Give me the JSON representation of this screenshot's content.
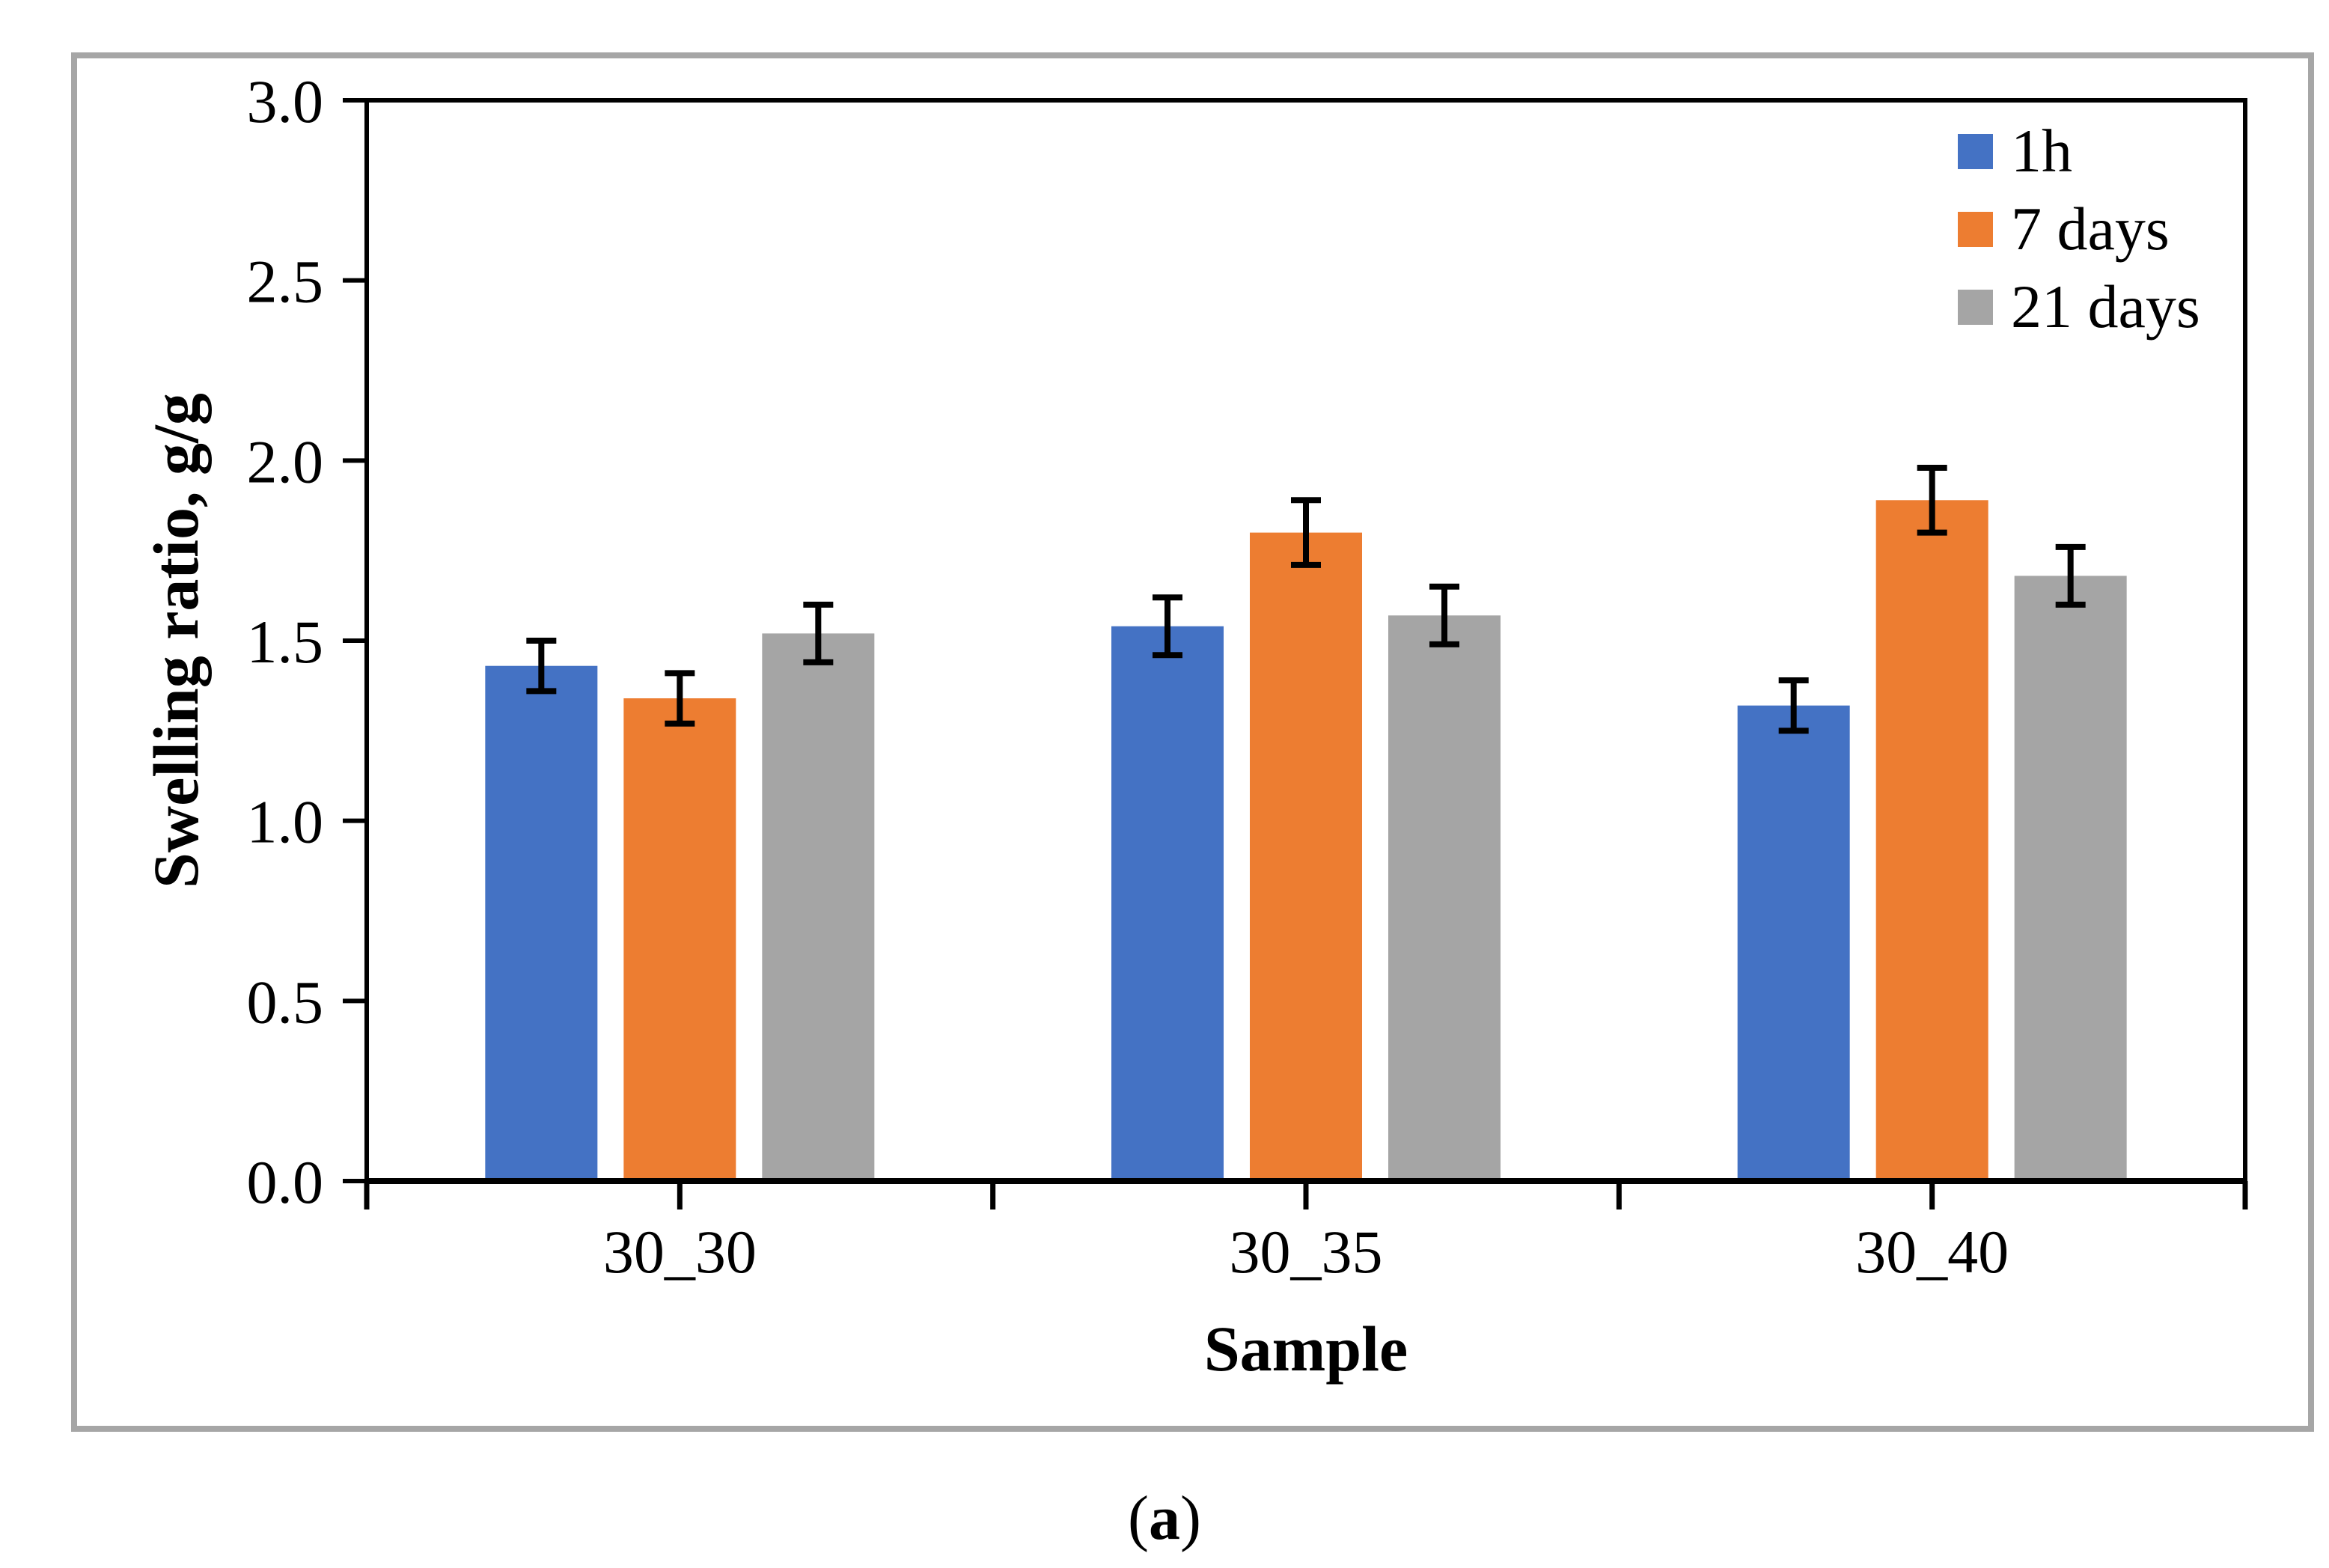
{
  "figure": {
    "caption_prefix": "(",
    "caption_letter": "a",
    "caption_suffix": ")"
  },
  "chart_data": {
    "type": "bar",
    "title": "",
    "xlabel": "Sample",
    "ylabel": "Swelling ratio, g/g",
    "categories": [
      "30_30",
      "30_35",
      "30_40"
    ],
    "series": [
      {
        "name": "1h",
        "color": "#4472C4",
        "values": [
          1.43,
          1.54,
          1.32
        ],
        "errors": [
          0.07,
          0.08,
          0.07
        ]
      },
      {
        "name": "7 days",
        "color": "#ED7D31",
        "values": [
          1.34,
          1.8,
          1.89
        ],
        "errors": [
          0.07,
          0.09,
          0.09
        ]
      },
      {
        "name": "21 days",
        "color": "#A5A5A5",
        "values": [
          1.52,
          1.57,
          1.68
        ],
        "errors": [
          0.08,
          0.08,
          0.08
        ]
      }
    ],
    "ylim": [
      0.0,
      3.0
    ],
    "y_ticks": [
      "0.0",
      "0.5",
      "1.0",
      "1.5",
      "2.0",
      "2.5",
      "3.0"
    ],
    "y_tick_step": 0.5,
    "grid": false,
    "legend_position": "top-right",
    "error_bars": true
  }
}
